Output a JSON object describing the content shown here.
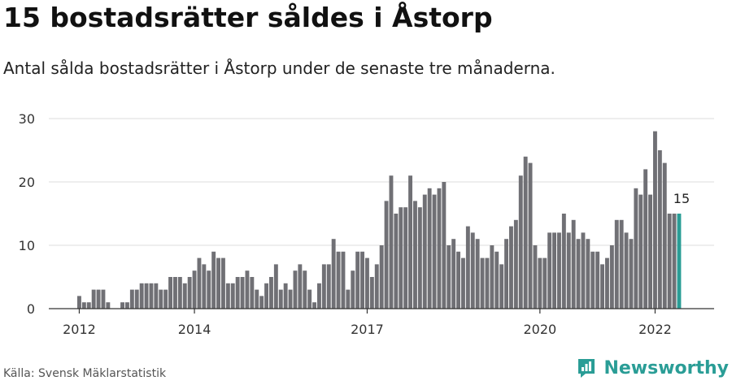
{
  "header": {
    "title": "15 bostadsrätter såldes i Åstorp",
    "subtitle": "Antal sålda bostadsrätter i Åstorp under de senaste tre månaderna."
  },
  "footer": {
    "source": "Källa: Svensk Mäklarstatistik",
    "brand": "Newsworthy"
  },
  "colors": {
    "bar": "#707075",
    "highlight": "#2a9d96",
    "grid": "#dddddd",
    "axis": "#333333"
  },
  "chart_data": {
    "type": "bar",
    "ylim": [
      0,
      30
    ],
    "yticks": [
      0,
      10,
      20,
      30
    ],
    "xticks": [
      {
        "label": "2012",
        "index": 0
      },
      {
        "label": "2014",
        "index": 24
      },
      {
        "label": "2017",
        "index": 60
      },
      {
        "label": "2020",
        "index": 96
      },
      {
        "label": "2022",
        "index": 120
      }
    ],
    "values": [
      2,
      1,
      1,
      3,
      3,
      3,
      1,
      0,
      0,
      1,
      1,
      3,
      3,
      4,
      4,
      4,
      4,
      3,
      3,
      5,
      5,
      5,
      4,
      5,
      6,
      8,
      7,
      6,
      9,
      8,
      8,
      4,
      4,
      5,
      5,
      6,
      5,
      3,
      2,
      4,
      5,
      7,
      3,
      4,
      3,
      6,
      7,
      6,
      3,
      1,
      4,
      7,
      7,
      11,
      9,
      9,
      3,
      6,
      9,
      9,
      8,
      5,
      7,
      10,
      17,
      21,
      15,
      16,
      16,
      21,
      17,
      16,
      18,
      19,
      18,
      19,
      20,
      10,
      11,
      9,
      8,
      13,
      12,
      11,
      8,
      8,
      10,
      9,
      7,
      11,
      13,
      14,
      21,
      24,
      23,
      10,
      8,
      8,
      12,
      12,
      12,
      15,
      12,
      14,
      11,
      12,
      11,
      9,
      9,
      7,
      8,
      10,
      14,
      14,
      12,
      11,
      19,
      18,
      22,
      18,
      28,
      25,
      23,
      15,
      15,
      15
    ],
    "highlight_last": 1,
    "last_label": "15"
  }
}
